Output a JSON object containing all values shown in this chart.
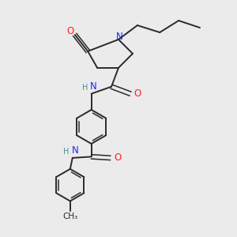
{
  "background_color": "#ebebeb",
  "bond_color": "#2a2a2a",
  "nitrogen_color": "#2020ff",
  "oxygen_color": "#ff2020",
  "carbon_color": "#2a2a2a",
  "nh_color": "#4a9090",
  "figsize": [
    3.0,
    3.0
  ],
  "dpi": 100,
  "xlim": [
    0,
    10
  ],
  "ylim": [
    0,
    10
  ]
}
